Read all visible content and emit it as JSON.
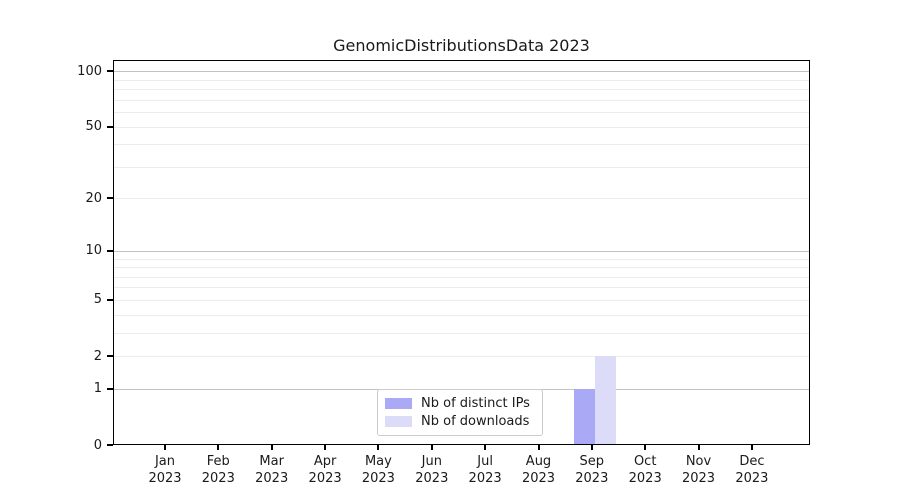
{
  "title": "GenomicDistributionsData 2023",
  "chart_data": {
    "type": "bar",
    "title": "GenomicDistributionsData 2023",
    "categories": [
      "Jan",
      "Feb",
      "Mar",
      "Apr",
      "May",
      "Jun",
      "Jul",
      "Aug",
      "Sep",
      "Oct",
      "Nov",
      "Dec"
    ],
    "year": "2023",
    "series": [
      {
        "name": "Nb of distinct IPs",
        "color": "#a9a9f5",
        "values": [
          0,
          0,
          0,
          0,
          0,
          0,
          0,
          0,
          1,
          0,
          0,
          0
        ]
      },
      {
        "name": "Nb of downloads",
        "color": "#dcdcf9",
        "values": [
          0,
          0,
          0,
          0,
          0,
          0,
          0,
          0,
          2,
          0,
          0,
          0
        ]
      }
    ],
    "y_scale": "log10(1+x)",
    "y_ticks": [
      0,
      1,
      2,
      5,
      10,
      20,
      50,
      100
    ],
    "y_gridlines_major": [
      1,
      10,
      100
    ],
    "y_gridlines_minor": [
      2,
      3,
      4,
      5,
      6,
      7,
      8,
      9,
      20,
      30,
      40,
      50,
      60,
      70,
      80,
      90
    ],
    "ylim": [
      0,
      115
    ],
    "xlabel": "",
    "ylabel": "",
    "grid": "horizontal",
    "legend_position": "lower center"
  },
  "colors": {
    "grid_major": "#c3c3c3",
    "grid_minor": "#ededed",
    "axis": "#000000",
    "text": "#1a1a1a"
  }
}
